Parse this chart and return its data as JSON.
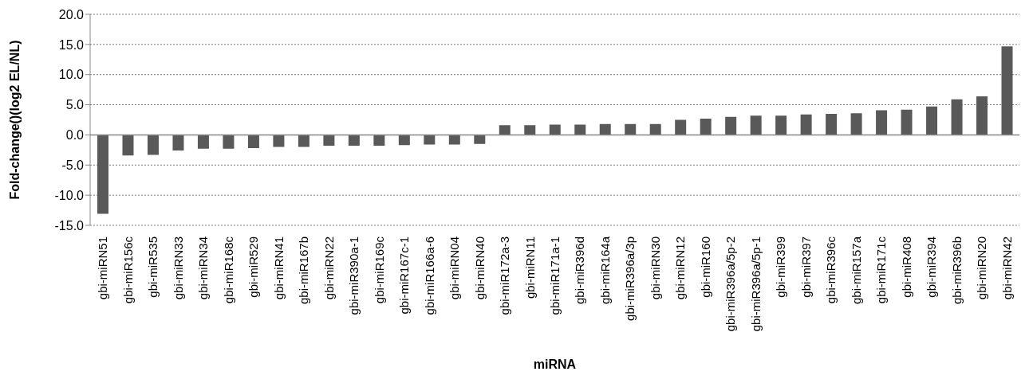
{
  "chart_data": {
    "type": "bar",
    "xlabel": "miRNA",
    "ylabel": "Fold-change()(log2 EL/NL)",
    "categories": [
      "gbi-miRN51",
      "gbi-miR156c",
      "gbi-miR535",
      "gbi-miRN33",
      "gbi-miRN34",
      "gbi-miR168c",
      "gbi-miR529",
      "gbi-miRN41",
      "gbi-miR167b",
      "gbi-miRN22",
      "gbi-miR390a-1",
      "gbi-miR169c",
      "gbi-miR167c-1",
      "gbi-miR166a-6",
      "gbi-miRN04",
      "gbi-miRN40",
      "gbi-miR172a-3",
      "gbi-miRN11",
      "gbi-miR171a-1",
      "gbi-miR396d",
      "gbi-miR164a",
      "gbi-miR396a/3p",
      "gbi-miRN30",
      "gbi-miRN12",
      "gbi-miR160",
      "gbi-miR396a/5p-2",
      "gbi-miR396a/5p-1",
      "gbi-miR399",
      "gbi-miR397",
      "gbi-miR396c",
      "gbi-miR157a",
      "gbi-miR171c",
      "gbi-miR408",
      "gbi-miR394",
      "gbi-miR396b",
      "gbi-miRN20",
      "gbi-miRN42"
    ],
    "values": [
      -13.1,
      -3.4,
      -3.3,
      -2.6,
      -2.3,
      -2.3,
      -2.2,
      -2.0,
      -2.0,
      -1.8,
      -1.8,
      -1.8,
      -1.7,
      -1.6,
      -1.6,
      -1.5,
      1.6,
      1.6,
      1.7,
      1.7,
      1.8,
      1.8,
      1.8,
      2.5,
      2.7,
      3.0,
      3.2,
      3.2,
      3.4,
      3.5,
      3.6,
      4.1,
      4.2,
      4.7,
      5.9,
      6.4,
      14.7
    ],
    "color": "#595959",
    "ylim": [
      -15,
      20
    ],
    "yticks": [
      {
        "value": -15,
        "label": "-15.0"
      },
      {
        "value": -10,
        "label": "-10.0"
      },
      {
        "value": -5,
        "label": "-5.0"
      },
      {
        "value": 0,
        "label": "0.0"
      },
      {
        "value": 5,
        "label": "5.0"
      },
      {
        "value": 10,
        "label": "10.0"
      },
      {
        "value": 15,
        "label": "15.0"
      },
      {
        "value": 20,
        "label": "20.0"
      }
    ],
    "grid": "y"
  }
}
